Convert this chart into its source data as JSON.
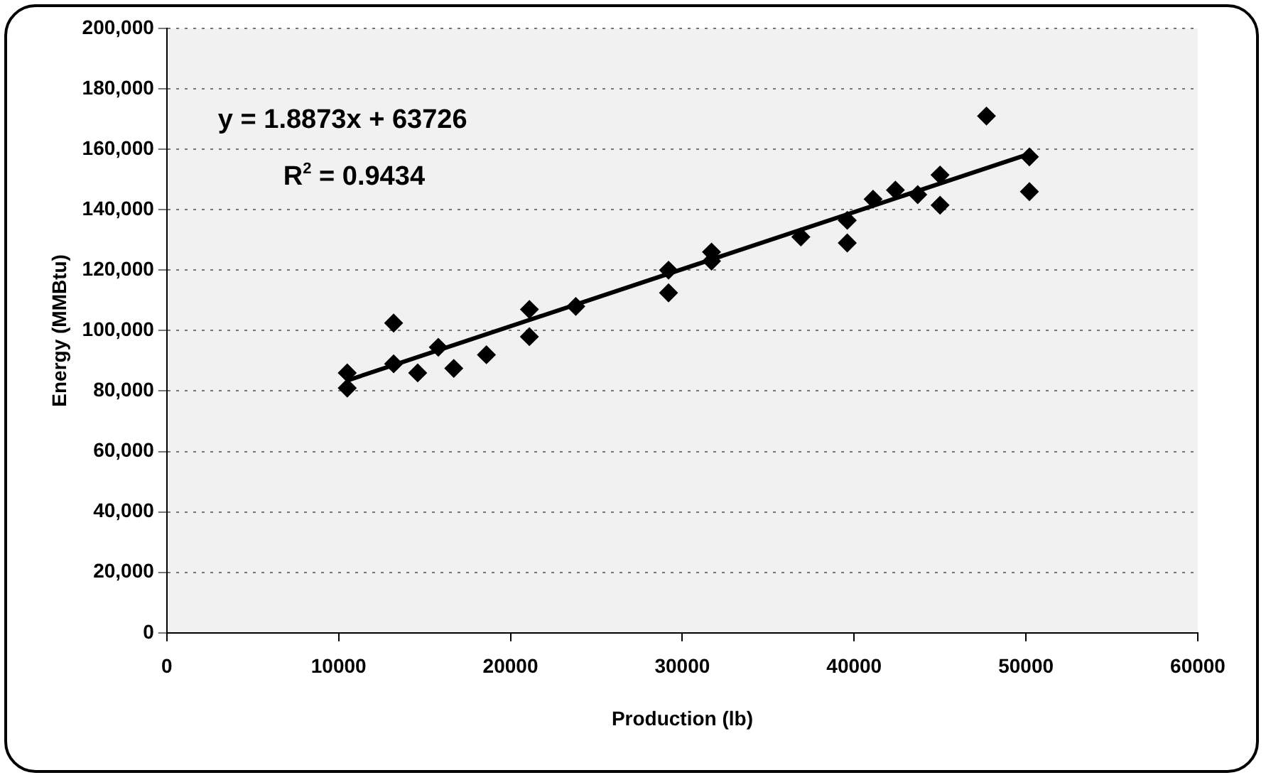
{
  "chart_data": {
    "type": "scatter",
    "xlabel": "Production (lb)",
    "ylabel": "Energy (MMBtu)",
    "annotations": [
      "y = 1.8873x + 63726",
      "R$^{2}$ = 0.9434"
    ],
    "series": [
      {
        "color": "#000000",
        "marker": "diamond",
        "x": [
          10500,
          10500,
          13200,
          13200,
          14600,
          15800,
          16700,
          18600,
          21100,
          21100,
          23800,
          29200,
          29200,
          31700,
          31700,
          36900,
          39600,
          39600,
          41100,
          42400,
          43700,
          45000,
          45000,
          47700,
          50200,
          50200
        ],
        "values": [
          86000,
          81000,
          102500,
          89000,
          86000,
          94500,
          87500,
          92000,
          107000,
          98000,
          108000,
          120000,
          112500,
          126000,
          123000,
          131000,
          136500,
          129000,
          143500,
          146500,
          145000,
          151500,
          141500,
          171000,
          157500,
          146000
        ]
      },
      {
        "type": "line",
        "color": "#000000",
        "marker": "none",
        "x": [
          10500,
          50200
        ],
        "values": [
          83500,
          158500
        ]
      }
    ],
    "xlim": [
      0,
      60000
    ],
    "xticks": [
      0,
      10000,
      20000,
      30000,
      40000,
      50000,
      60000
    ],
    "ylim": [
      0,
      200000
    ],
    "yticks": [
      {
        "value": 0,
        "label": "0"
      },
      {
        "value": 20000,
        "label": "20,000"
      },
      {
        "value": 40000,
        "label": "40,000"
      },
      {
        "value": 60000,
        "label": "60,000"
      },
      {
        "value": 80000,
        "label": "80,000"
      },
      {
        "value": 100000,
        "label": "100,000"
      },
      {
        "value": 120000,
        "label": "120,000"
      },
      {
        "value": 140000,
        "label": "140,000"
      },
      {
        "value": 160000,
        "label": "160,000"
      },
      {
        "value": 180000,
        "label": "180,000"
      },
      {
        "value": 200000,
        "label": "200,000"
      }
    ],
    "grid": "y",
    "legend": false
  }
}
